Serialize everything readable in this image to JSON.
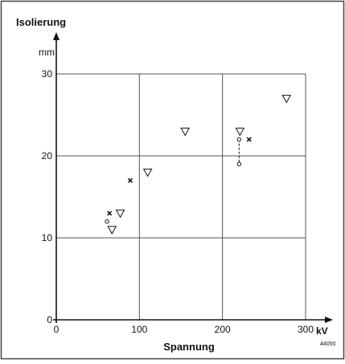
{
  "chart_data": {
    "type": "scatter",
    "ylabel": "Isolierung",
    "yunit": "mm",
    "xlabel": "Spannung",
    "xunit": "kV",
    "figure_number": "44050",
    "xlim": [
      0,
      300
    ],
    "ylim": [
      0,
      30
    ],
    "xticks": [
      0,
      100,
      200,
      300
    ],
    "yticks": [
      0,
      10,
      20,
      30
    ],
    "grid": true,
    "series": [
      {
        "marker": "triangle-down",
        "points": [
          [
            67,
            11
          ],
          [
            77,
            13
          ],
          [
            110,
            18
          ],
          [
            155,
            23
          ],
          [
            221,
            23
          ],
          [
            277,
            27
          ]
        ]
      },
      {
        "marker": "x",
        "points": [
          [
            64,
            13
          ],
          [
            89,
            17
          ],
          [
            232,
            22
          ]
        ]
      },
      {
        "marker": "circle",
        "points": [
          [
            61,
            12
          ],
          [
            220,
            22
          ],
          [
            220,
            19
          ]
        ]
      }
    ],
    "ranges": [
      {
        "x": 220,
        "y_low": 19,
        "y_high": 22,
        "style": "dashed"
      }
    ]
  }
}
